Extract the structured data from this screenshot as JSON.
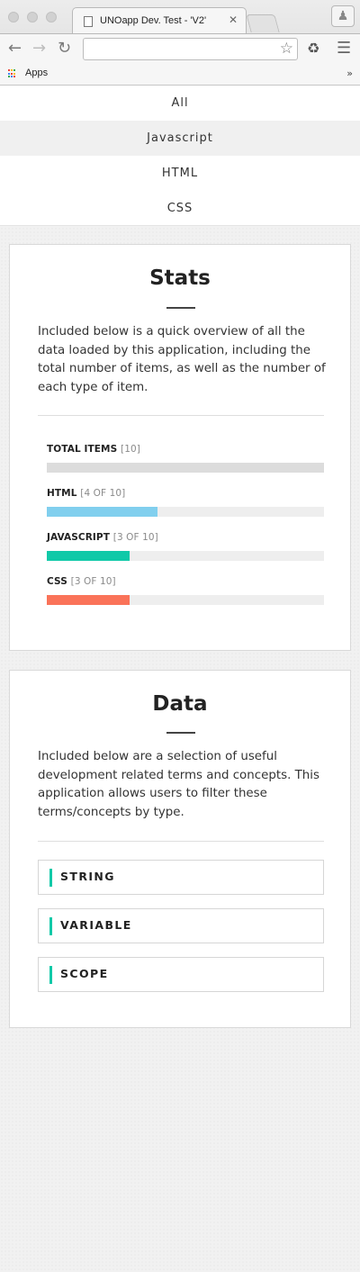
{
  "browser": {
    "tab_title": "UNOapp Dev. Test - 'V2'",
    "tab_close": "✕",
    "url": "",
    "bookmarks_label": "Apps",
    "bookmarks_more": "»"
  },
  "nav": {
    "items": [
      {
        "label": "All"
      },
      {
        "label": "Javascript",
        "active": true
      },
      {
        "label": "HTML"
      },
      {
        "label": "CSS"
      }
    ]
  },
  "stats": {
    "title": "Stats",
    "intro": "Included below is a quick overview of all the data loaded by this application, including the total number of items, as well as the number of each type of item.",
    "rows": [
      {
        "label": "TOTAL ITEMS",
        "count": "[10]",
        "fraction": 1.0,
        "color": "#dcdcdc"
      },
      {
        "label": "HTML",
        "count": "[4 OF 10]",
        "fraction": 0.4,
        "color": "#81cfee"
      },
      {
        "label": "JAVASCRIPT",
        "count": "[3 OF 10]",
        "fraction": 0.3,
        "color": "#10c9a8"
      },
      {
        "label": "CSS",
        "count": "[3 OF 10]",
        "fraction": 0.3,
        "color": "#fa7359"
      }
    ]
  },
  "data_section": {
    "title": "Data",
    "intro": "Included below are a selection of useful development related terms and concepts. This application allows users to filter these terms/concepts by type.",
    "accent_color": "#10c9a8",
    "terms": [
      {
        "label": "STRING"
      },
      {
        "label": "VARIABLE"
      },
      {
        "label": "SCOPE"
      }
    ]
  }
}
